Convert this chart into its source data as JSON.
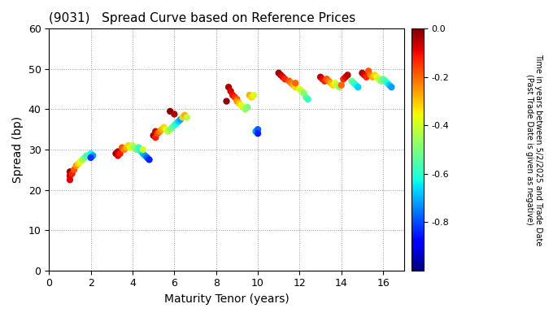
{
  "title": "(9031)   Spread Curve based on Reference Prices",
  "xlabel": "Maturity Tenor (years)",
  "ylabel": "Spread (bp)",
  "colorbar_label": "Time in years between 5/2/2025 and Trade Date\n(Past Trade Date is given as negative)",
  "colorbar_ticks": [
    0.0,
    -0.2,
    -0.4,
    -0.6,
    -0.8
  ],
  "xlim": [
    0,
    17
  ],
  "ylim": [
    0,
    60
  ],
  "xticks": [
    0,
    2,
    4,
    6,
    8,
    10,
    12,
    14,
    16
  ],
  "yticks": [
    0,
    10,
    20,
    30,
    40,
    50,
    60
  ],
  "cmap": "jet",
  "vmin": -1.0,
  "vmax": 0.0,
  "marker_size": 25,
  "background": "#ffffff",
  "points": [
    [
      1.0,
      24.5,
      -0.02
    ],
    [
      1.0,
      23.5,
      -0.05
    ],
    [
      1.0,
      22.5,
      -0.08
    ],
    [
      1.1,
      24.0,
      -0.12
    ],
    [
      1.2,
      25.0,
      -0.18
    ],
    [
      1.3,
      26.0,
      -0.25
    ],
    [
      1.4,
      26.5,
      -0.32
    ],
    [
      1.5,
      27.0,
      -0.38
    ],
    [
      1.6,
      27.5,
      -0.44
    ],
    [
      1.7,
      28.0,
      -0.5
    ],
    [
      1.8,
      28.5,
      -0.56
    ],
    [
      2.0,
      29.0,
      -0.62
    ],
    [
      2.1,
      28.5,
      -0.72
    ],
    [
      2.0,
      28.0,
      -0.82
    ],
    [
      3.2,
      29.0,
      -0.02
    ],
    [
      3.3,
      29.5,
      -0.05
    ],
    [
      3.3,
      28.5,
      -0.08
    ],
    [
      3.4,
      29.0,
      -0.12
    ],
    [
      3.5,
      30.5,
      -0.18
    ],
    [
      3.6,
      30.0,
      -0.22
    ],
    [
      3.7,
      30.5,
      -0.28
    ],
    [
      3.8,
      31.0,
      -0.32
    ],
    [
      3.9,
      30.5,
      -0.38
    ],
    [
      4.0,
      31.0,
      -0.42
    ],
    [
      4.1,
      30.5,
      -0.48
    ],
    [
      4.2,
      30.0,
      -0.52
    ],
    [
      4.3,
      30.5,
      -0.58
    ],
    [
      4.4,
      29.5,
      -0.62
    ],
    [
      4.5,
      29.0,
      -0.68
    ],
    [
      4.6,
      28.5,
      -0.72
    ],
    [
      4.7,
      28.0,
      -0.78
    ],
    [
      4.8,
      27.5,
      -0.84
    ],
    [
      4.5,
      30.0,
      -0.4
    ],
    [
      5.0,
      33.5,
      -0.03
    ],
    [
      5.1,
      34.5,
      -0.07
    ],
    [
      5.1,
      33.0,
      -0.12
    ],
    [
      5.2,
      34.0,
      -0.17
    ],
    [
      5.3,
      34.5,
      -0.22
    ],
    [
      5.4,
      35.0,
      -0.27
    ],
    [
      5.5,
      35.5,
      -0.32
    ],
    [
      5.6,
      35.0,
      -0.37
    ],
    [
      5.7,
      34.5,
      -0.42
    ],
    [
      5.8,
      35.0,
      -0.47
    ],
    [
      5.9,
      35.5,
      -0.52
    ],
    [
      6.0,
      36.0,
      -0.57
    ],
    [
      6.1,
      36.5,
      -0.62
    ],
    [
      6.2,
      37.0,
      -0.67
    ],
    [
      6.3,
      37.5,
      -0.72
    ],
    [
      6.4,
      38.0,
      -0.32
    ],
    [
      6.5,
      38.5,
      -0.27
    ],
    [
      6.6,
      38.0,
      -0.42
    ],
    [
      5.8,
      39.5,
      -0.01
    ],
    [
      6.0,
      38.8,
      -0.05
    ],
    [
      8.5,
      42.0,
      -0.02
    ],
    [
      8.6,
      45.5,
      -0.04
    ],
    [
      8.7,
      44.5,
      -0.07
    ],
    [
      8.8,
      43.5,
      -0.1
    ],
    [
      8.9,
      43.0,
      -0.14
    ],
    [
      9.0,
      42.5,
      -0.18
    ],
    [
      9.0,
      42.0,
      -0.24
    ],
    [
      9.1,
      41.5,
      -0.3
    ],
    [
      9.2,
      41.0,
      -0.36
    ],
    [
      9.3,
      40.5,
      -0.4
    ],
    [
      9.4,
      40.0,
      -0.46
    ],
    [
      9.5,
      40.5,
      -0.5
    ],
    [
      9.6,
      43.5,
      -0.28
    ],
    [
      9.7,
      43.0,
      -0.32
    ],
    [
      9.8,
      43.5,
      -0.38
    ],
    [
      9.9,
      34.5,
      -0.72
    ],
    [
      10.0,
      35.0,
      -0.78
    ],
    [
      10.0,
      34.0,
      -0.84
    ],
    [
      11.0,
      49.0,
      -0.02
    ],
    [
      11.1,
      48.5,
      -0.05
    ],
    [
      11.2,
      48.0,
      -0.09
    ],
    [
      11.3,
      47.5,
      -0.13
    ],
    [
      11.5,
      47.0,
      -0.18
    ],
    [
      11.6,
      46.5,
      -0.22
    ],
    [
      11.7,
      46.0,
      -0.27
    ],
    [
      11.8,
      45.5,
      -0.32
    ],
    [
      12.0,
      45.0,
      -0.38
    ],
    [
      12.1,
      44.5,
      -0.42
    ],
    [
      12.2,
      44.0,
      -0.48
    ],
    [
      12.3,
      43.0,
      -0.52
    ],
    [
      12.4,
      42.5,
      -0.58
    ],
    [
      11.8,
      46.5,
      -0.2
    ],
    [
      13.0,
      48.0,
      -0.05
    ],
    [
      13.1,
      47.5,
      -0.09
    ],
    [
      13.2,
      47.0,
      -0.13
    ],
    [
      13.3,
      47.5,
      -0.18
    ],
    [
      13.4,
      47.0,
      -0.22
    ],
    [
      13.5,
      46.5,
      -0.27
    ],
    [
      13.6,
      46.0,
      -0.32
    ],
    [
      13.7,
      46.5,
      -0.37
    ],
    [
      13.8,
      46.0,
      -0.42
    ],
    [
      13.9,
      45.5,
      -0.47
    ],
    [
      14.0,
      46.0,
      -0.2
    ],
    [
      14.1,
      47.5,
      -0.13
    ],
    [
      14.2,
      48.0,
      -0.09
    ],
    [
      14.3,
      48.5,
      -0.05
    ],
    [
      14.5,
      47.0,
      -0.52
    ],
    [
      14.6,
      46.5,
      -0.57
    ],
    [
      14.7,
      46.0,
      -0.62
    ],
    [
      14.8,
      45.5,
      -0.67
    ],
    [
      15.0,
      49.0,
      -0.04
    ],
    [
      15.1,
      48.5,
      -0.08
    ],
    [
      15.2,
      48.0,
      -0.13
    ],
    [
      15.3,
      49.5,
      -0.18
    ],
    [
      15.4,
      48.5,
      -0.22
    ],
    [
      15.5,
      48.0,
      -0.27
    ],
    [
      15.6,
      48.5,
      -0.32
    ],
    [
      15.7,
      48.0,
      -0.37
    ],
    [
      15.8,
      47.5,
      -0.42
    ],
    [
      15.9,
      47.0,
      -0.47
    ],
    [
      16.0,
      47.5,
      -0.52
    ],
    [
      16.1,
      47.0,
      -0.57
    ],
    [
      16.2,
      46.5,
      -0.62
    ],
    [
      16.3,
      46.0,
      -0.67
    ],
    [
      16.4,
      45.5,
      -0.72
    ]
  ]
}
